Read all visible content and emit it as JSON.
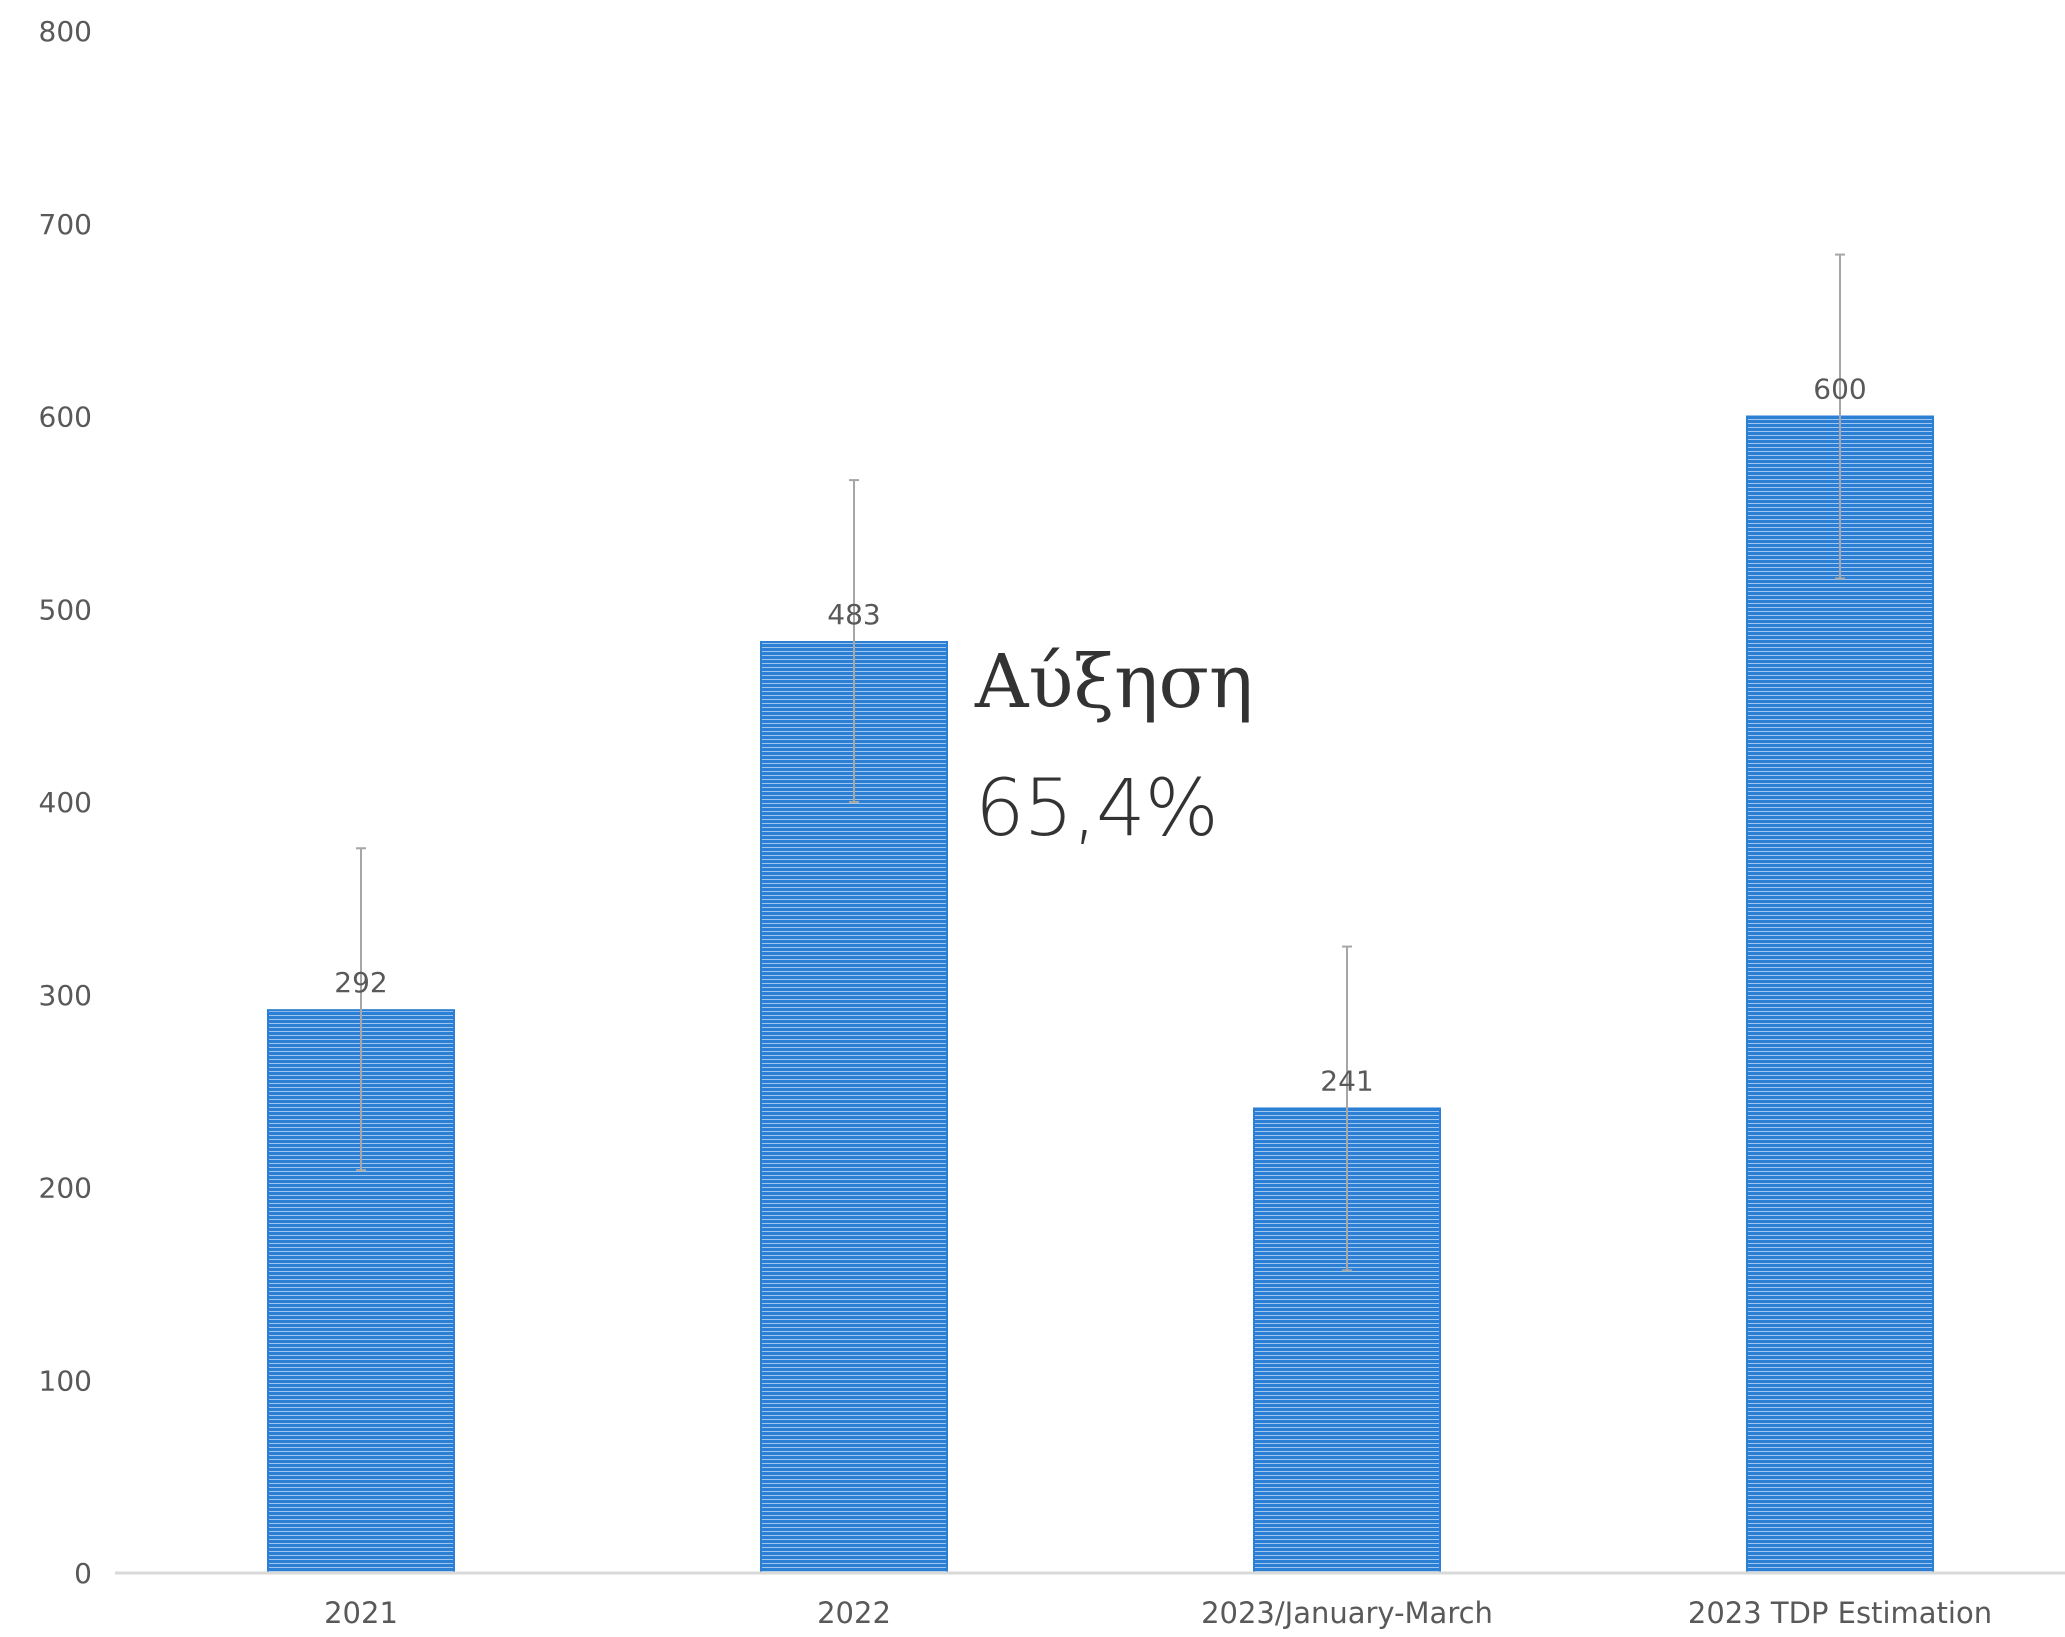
{
  "chart_data": {
    "type": "bar",
    "categories": [
      "2021",
      "2022",
      "2023/January-March",
      "2023 TDP Estimation"
    ],
    "values": [
      292,
      483,
      241,
      600
    ],
    "data_labels": [
      "292",
      "483",
      "241",
      "600"
    ],
    "error_bars": [
      {
        "low": 209,
        "high": 376
      },
      {
        "low": 400,
        "high": 567
      },
      {
        "low": 157,
        "high": 325
      },
      {
        "low": 516,
        "high": 684
      }
    ],
    "ylim": [
      0,
      800
    ],
    "y_ticks": [
      0,
      100,
      200,
      300,
      400,
      500,
      600,
      700,
      800
    ],
    "grid": false,
    "bar_fill_style": "horizontal-stripes",
    "colors": {
      "bar": "#2b7fd4",
      "bar_stripe": "#ffffff",
      "error_bar": "#a6a6a6",
      "axis": "#d9d9d9",
      "tick_label": "#595959",
      "data_label": "#595959"
    },
    "annotation": {
      "title": "Αύξηση",
      "value": "65,4%"
    }
  }
}
